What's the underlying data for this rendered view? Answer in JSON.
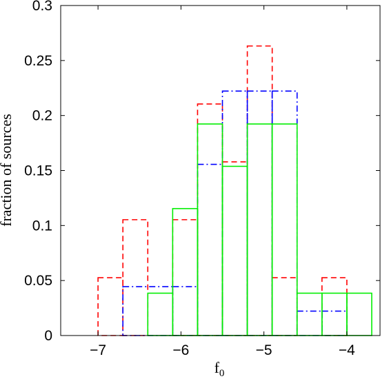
{
  "chart_data": {
    "type": "bar",
    "xlabel": "f",
    "xlabel_subscript": "0",
    "ylabel": "fraction of sources",
    "xlim": [
      -7.45,
      -3.6
    ],
    "ylim": [
      0,
      0.3
    ],
    "x_ticks": [
      -7,
      -6,
      -5,
      -4
    ],
    "x_tick_labels": [
      "−7",
      "−6",
      "−5",
      "−4"
    ],
    "y_ticks": [
      0,
      0.05,
      0.1,
      0.15,
      0.2,
      0.25,
      0.3
    ],
    "y_tick_labels": [
      "0",
      "0.05",
      "0.1",
      "0.15",
      "0.2",
      "0.25",
      "0.3"
    ],
    "grid": false,
    "series": [
      {
        "style": "dashed",
        "color": "#ff0000",
        "bins": [
          {
            "x0": -7.0,
            "x1": -6.7,
            "value": 0.0526
          },
          {
            "x0": -6.7,
            "x1": -6.4,
            "value": 0.1053
          },
          {
            "x0": -6.4,
            "x1": -6.1,
            "value": 0.0
          },
          {
            "x0": -6.1,
            "x1": -5.8,
            "value": 0.1053
          },
          {
            "x0": -5.8,
            "x1": -5.5,
            "value": 0.2105
          },
          {
            "x0": -5.5,
            "x1": -5.2,
            "value": 0.1579
          },
          {
            "x0": -5.2,
            "x1": -4.9,
            "value": 0.2632
          },
          {
            "x0": -4.9,
            "x1": -4.6,
            "value": 0.0526
          },
          {
            "x0": -4.6,
            "x1": -4.3,
            "value": 0.0
          },
          {
            "x0": -4.3,
            "x1": -4.0,
            "value": 0.0526
          }
        ]
      },
      {
        "style": "dashdot",
        "color": "#0000ff",
        "bins": [
          {
            "x0": -6.7,
            "x1": -6.1,
            "value": 0.0444
          },
          {
            "x0": -6.1,
            "x1": -5.8,
            "value": 0.0444
          },
          {
            "x0": -5.8,
            "x1": -5.5,
            "value": 0.1556
          },
          {
            "x0": -5.5,
            "x1": -5.2,
            "value": 0.2222
          },
          {
            "x0": -5.2,
            "x1": -4.9,
            "value": 0.2222
          },
          {
            "x0": -4.9,
            "x1": -4.6,
            "value": 0.2222
          },
          {
            "x0": -4.6,
            "x1": -4.3,
            "value": 0.0222
          },
          {
            "x0": -4.3,
            "x1": -4.0,
            "value": 0.0222
          }
        ]
      },
      {
        "style": "solid",
        "color": "#00ee00",
        "bins": [
          {
            "x0": -6.4,
            "x1": -6.1,
            "value": 0.0385
          },
          {
            "x0": -6.1,
            "x1": -5.8,
            "value": 0.1154
          },
          {
            "x0": -5.8,
            "x1": -5.5,
            "value": 0.1923
          },
          {
            "x0": -5.5,
            "x1": -5.2,
            "value": 0.1538
          },
          {
            "x0": -5.2,
            "x1": -4.9,
            "value": 0.1923
          },
          {
            "x0": -4.9,
            "x1": -4.6,
            "value": 0.1923
          },
          {
            "x0": -4.6,
            "x1": -4.3,
            "value": 0.0385
          },
          {
            "x0": -4.3,
            "x1": -4.0,
            "value": 0.0385
          },
          {
            "x0": -4.0,
            "x1": -3.7,
            "value": 0.0385
          }
        ]
      }
    ]
  }
}
